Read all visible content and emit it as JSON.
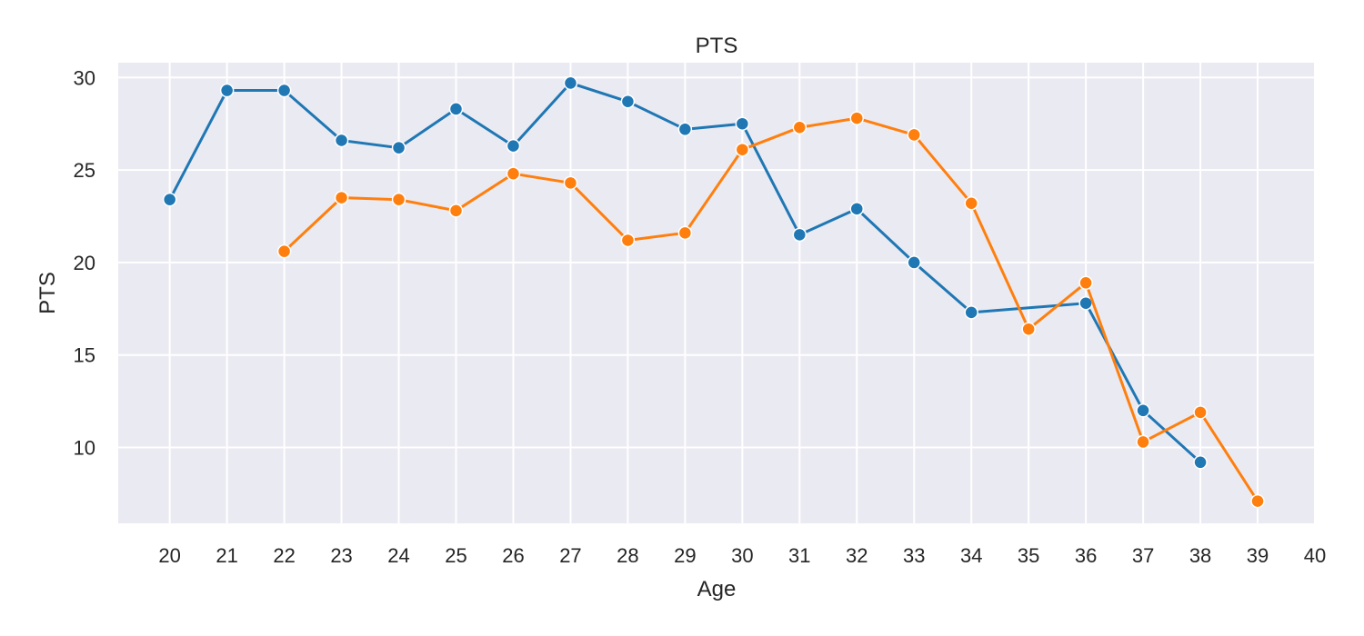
{
  "chart_data": {
    "type": "line",
    "title": "PTS",
    "xlabel": "Age",
    "ylabel": "PTS",
    "xlim": [
      19.1,
      40
    ],
    "ylim": [
      5.9,
      30.8
    ],
    "xticks": [
      20,
      21,
      22,
      23,
      24,
      25,
      26,
      27,
      28,
      29,
      30,
      31,
      32,
      33,
      34,
      35,
      36,
      37,
      38,
      39,
      40
    ],
    "yticks": [
      10,
      15,
      20,
      25,
      30
    ],
    "grid": true,
    "legend": false,
    "background": "#eaeaf2",
    "series": [
      {
        "color": "#1f77b4",
        "x": [
          20,
          21,
          22,
          23,
          24,
          25,
          26,
          27,
          28,
          29,
          30,
          31,
          32,
          33,
          34,
          36,
          37,
          38
        ],
        "y": [
          23.4,
          29.3,
          29.3,
          26.6,
          26.2,
          28.3,
          26.3,
          29.7,
          28.7,
          27.2,
          27.5,
          21.5,
          22.9,
          20.0,
          17.3,
          17.8,
          12.0,
          9.2
        ]
      },
      {
        "color": "#ff7f0e",
        "x": [
          22,
          23,
          24,
          25,
          26,
          27,
          28,
          29,
          30,
          31,
          32,
          33,
          34,
          35,
          36,
          37,
          38,
          39
        ],
        "y": [
          20.6,
          23.5,
          23.4,
          22.8,
          24.8,
          24.3,
          21.2,
          21.6,
          26.1,
          27.3,
          27.8,
          26.9,
          23.2,
          16.4,
          18.9,
          10.3,
          11.9,
          7.1
        ]
      }
    ]
  }
}
